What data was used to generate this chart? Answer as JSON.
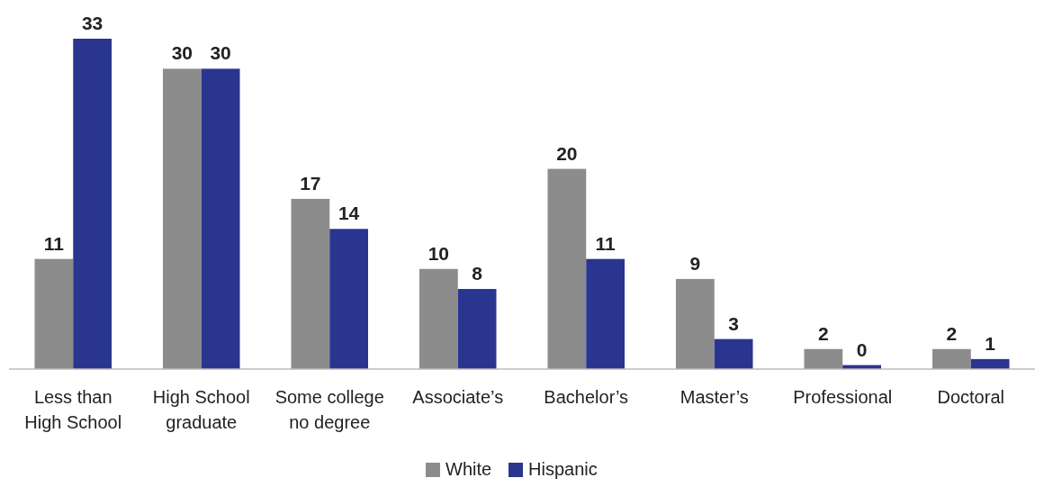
{
  "chart_data": {
    "type": "bar",
    "categories": [
      "Less than\nHigh School",
      "High School\ngraduate",
      "Some college\nno degree",
      "Associate’s",
      "Bachelor’s",
      "Master’s",
      "Professional",
      "Doctoral"
    ],
    "series": [
      {
        "name": "White",
        "color": "#8c8c8c",
        "values": [
          11,
          30,
          17,
          10,
          20,
          9,
          2,
          2
        ],
        "value_labels": [
          "11",
          "30",
          "17",
          "10",
          "20",
          "9",
          "2",
          "2"
        ]
      },
      {
        "name": "Hispanic",
        "color": "#2a3590",
        "values": [
          33,
          30,
          14,
          8,
          11,
          3,
          0.4,
          1
        ],
        "value_labels": [
          "33",
          "30",
          "14",
          "8",
          "11",
          "3",
          "0",
          "1"
        ]
      }
    ],
    "legend": "bottom",
    "grid": false
  }
}
